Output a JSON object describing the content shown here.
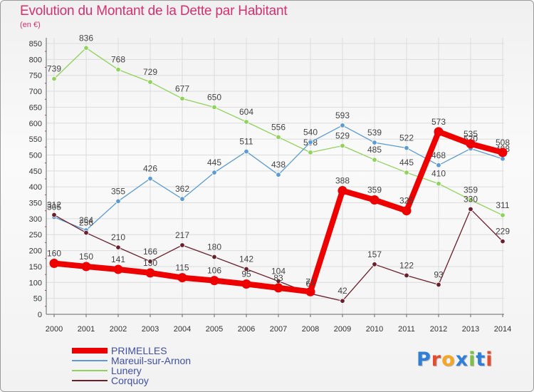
{
  "header": {
    "title": "Evolution du Montant de la Dette par Habitant",
    "subtitle": "(en €)"
  },
  "logo": {
    "text": "Proxiti",
    "letter_colors": [
      "#2f7fd9",
      "#e64b2e",
      "#f6a623",
      "#2f7fd9",
      "#7ac142",
      "#2f7fd9",
      "#e64b2e"
    ]
  },
  "chart_data": {
    "type": "line",
    "title": "Evolution du Montant de la Dette par Habitant",
    "subtitle": "(en €)",
    "xlabel": "",
    "ylabel": "",
    "ylim": [
      0,
      850
    ],
    "yticks": [
      0,
      50,
      100,
      150,
      200,
      250,
      300,
      350,
      400,
      450,
      500,
      550,
      600,
      650,
      700,
      750,
      800,
      850
    ],
    "grid": true,
    "legend_position": "bottom-left",
    "x": [
      "2000",
      "2001",
      "2002",
      "2003",
      "2004",
      "2005",
      "2006",
      "2007",
      "2008",
      "2009",
      "2010",
      "2011",
      "2012",
      "2013",
      "2014"
    ],
    "series": [
      {
        "name": "Lunery",
        "color": "#8fd35a",
        "values": [
          739,
          836,
          768,
          729,
          677,
          650,
          604,
          556,
          508,
          529,
          485,
          445,
          410,
          359,
          311
        ]
      },
      {
        "name": "Mareuil-sur-Arnon",
        "color": "#5b9bd5",
        "values": [
          305,
          264,
          355,
          426,
          362,
          445,
          511,
          438,
          540,
          593,
          539,
          522,
          468,
          520,
          488
        ]
      },
      {
        "name": "Corquoy",
        "color": "#6b1f2a",
        "values": [
          312,
          256,
          210,
          166,
          217,
          180,
          142,
          104,
          65,
          42,
          157,
          122,
          93,
          330,
          229
        ]
      },
      {
        "name": "PRIMELLES",
        "color": "#ee0000",
        "values": [
          160,
          150,
          141,
          130,
          115,
          106,
          95,
          83,
          71,
          388,
          359,
          325,
          573,
          535,
          508
        ]
      }
    ],
    "legend_order": [
      "PRIMELLES",
      "Mareuil-sur-Arnon",
      "Lunery",
      "Corquoy"
    ]
  }
}
